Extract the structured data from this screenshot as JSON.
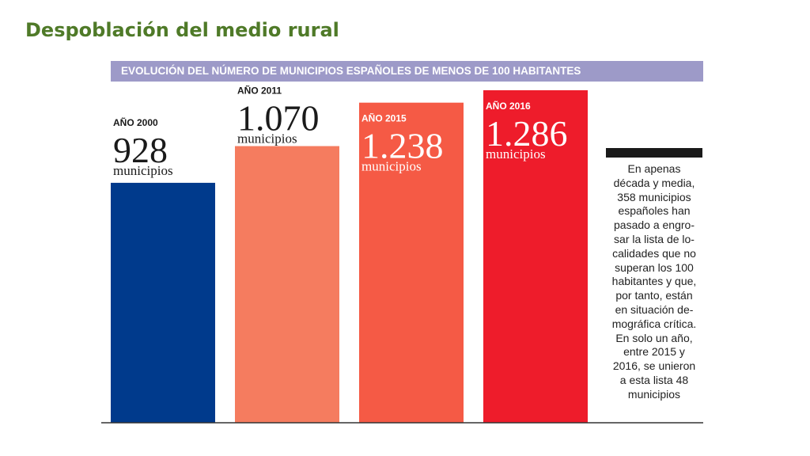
{
  "slide": {
    "title": "Despoblación del medio rural"
  },
  "chart_data": {
    "type": "bar",
    "title": "EVOLUCIÓN DEL NÚMERO DE MUNICIPIOS ESPAÑOLES DE MENOS DE 100 HABITANTES",
    "categories": [
      "AÑO 2000",
      "AÑO 2011",
      "AÑO 2015",
      "AÑO 2016"
    ],
    "values": [
      928,
      1070,
      1238,
      1286
    ],
    "value_labels": [
      "928",
      "1.070",
      "1.238",
      "1.286"
    ],
    "unit": "municipios",
    "colors": [
      "#003a8c",
      "#f57c5f",
      "#f55a45",
      "#ee1c2b"
    ],
    "ylim": [
      0,
      1286
    ],
    "xlabel": "",
    "ylabel": "",
    "grid": false
  },
  "note": {
    "text": "En apenas\ndécada y media,\n358 municipios\nespañoles han\npasado a engro-\nsar la lista de lo-\ncalidades que no\nsuperan los 100\nhabitantes y que,\npor tanto, están\nen situación de-\nmográfica crítica.\nEn solo un año,\nentre 2015 y\n2016, se unieron\na esta lista 48\nmunicipios"
  }
}
